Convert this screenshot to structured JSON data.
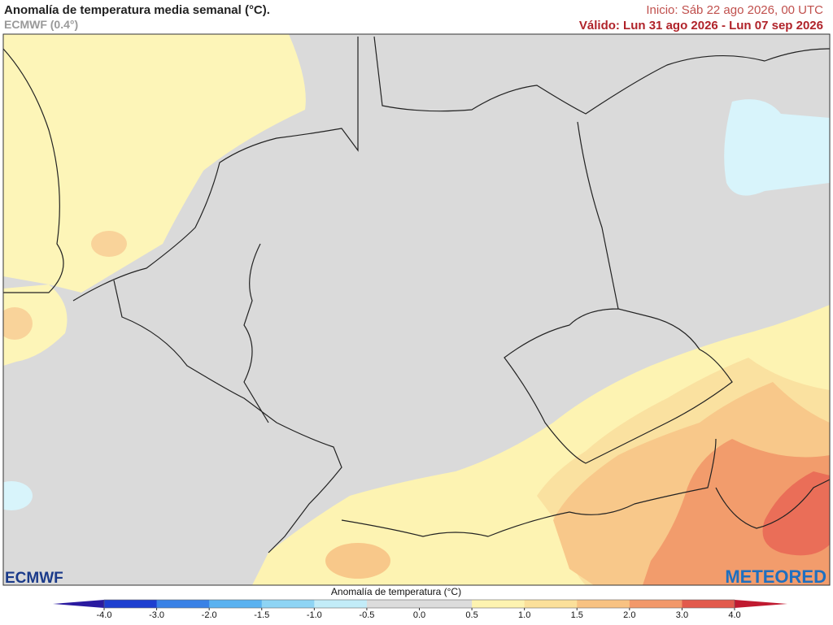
{
  "header": {
    "title": "Anomalía de temperatura media semanal (°C).",
    "source": "ECMWF (0.4°)",
    "init": "Inicio: Sáb 22 ago 2026, 00 UTC",
    "valid": "Válido: Lun 31 ago 2026 - Lun 07 sep 2026"
  },
  "logos": {
    "left": "ECMWF",
    "right": "METEORED"
  },
  "colorbar": {
    "label": "Anomalía de temperatura (°C)",
    "ticks": [
      "-4.0",
      "-3.0",
      "-2.0",
      "-1.5",
      "-1.0",
      "-0.5",
      "0.0",
      "0.5",
      "1.0",
      "1.5",
      "2.0",
      "3.0",
      "4.0"
    ]
  }
}
